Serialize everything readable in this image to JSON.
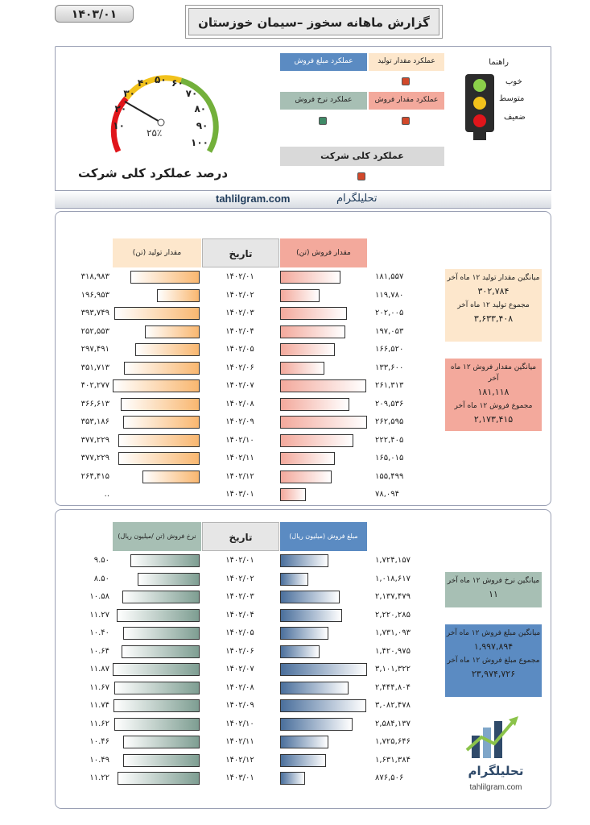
{
  "header": {
    "date": "۱۴۰۳/۰۱",
    "title": "گزارش ماهانه سخوز –سیمان خوزستان"
  },
  "gauge": {
    "percent": 0.25,
    "value_label": "۲۵٪",
    "scale_labels": [
      "۱۰",
      "۲۰",
      "۳۰",
      "۴۰",
      "۵۰",
      "۶۰",
      "۷۰",
      "۸۰",
      "۹۰",
      "۱۰۰"
    ],
    "caption": "درصد عملکرد کلی شرکت"
  },
  "perf_panel": {
    "cells": [
      {
        "label": "عملکرد مقدار تولید",
        "color": "#fde7cc",
        "lamp": "#d2482a"
      },
      {
        "label": "عملکرد مبلغ فروش",
        "color": "#5b8bc2",
        "lamp": "#d2482a"
      },
      {
        "label": "عملکرد مقدار فروش",
        "color": "#f3a99c",
        "lamp": "#d2482a"
      },
      {
        "label": "عملکرد  نرخ فروش",
        "color": "#a7bfb4",
        "lamp": "#3f8a67"
      }
    ],
    "overall": {
      "label": "عملکرد کلی شرکت",
      "lamp": "#d2482a"
    }
  },
  "legend": {
    "title": "راهنما",
    "items": [
      "خوب",
      "متوسط",
      "ضعیف"
    ]
  },
  "brand_bar": {
    "site": "tahlilgram.com",
    "name": "تحلیلگرام"
  },
  "section1": {
    "headers": {
      "left": "مقدار تولید (تن)",
      "center": "تاریخ",
      "right": "مقدار فروش (تن)"
    },
    "rows": [
      {
        "left": "۳۱۸,۹۸۳",
        "lv": 318983,
        "date": "۱۴۰۲/۰۱",
        "right": "۱۸۱,۵۵۷",
        "rv": 181557
      },
      {
        "left": "۱۹۶,۹۵۳",
        "lv": 196953,
        "date": "۱۴۰۲/۰۲",
        "right": "۱۱۹,۷۸۰",
        "rv": 119780
      },
      {
        "left": "۳۹۳,۷۴۹",
        "lv": 393749,
        "date": "۱۴۰۲/۰۳",
        "right": "۲۰۲,۰۰۵",
        "rv": 202005
      },
      {
        "left": "۲۵۲,۵۵۳",
        "lv": 252553,
        "date": "۱۴۰۲/۰۴",
        "right": "۱۹۷,۰۵۳",
        "rv": 197053
      },
      {
        "left": "۲۹۷,۴۹۱",
        "lv": 297491,
        "date": "۱۴۰۲/۰۵",
        "right": "۱۶۶,۵۲۰",
        "rv": 166520
      },
      {
        "left": "۳۵۱,۷۱۳",
        "lv": 351713,
        "date": "۱۴۰۲/۰۶",
        "right": "۱۳۳,۶۰۰",
        "rv": 133600
      },
      {
        "left": "۴۰۲,۲۷۷",
        "lv": 402277,
        "date": "۱۴۰۲/۰۷",
        "right": "۲۶۱,۳۱۳",
        "rv": 261313
      },
      {
        "left": "۳۶۶,۶۱۳",
        "lv": 366613,
        "date": "۱۴۰۲/۰۸",
        "right": "۲۰۹,۵۳۶",
        "rv": 209536
      },
      {
        "left": "۳۵۳,۱۸۶",
        "lv": 353186,
        "date": "۱۴۰۲/۰۹",
        "right": "۲۶۲,۵۹۵",
        "rv": 262595
      },
      {
        "left": "۳۷۷,۲۲۹",
        "lv": 377229,
        "date": "۱۴۰۲/۱۰",
        "right": "۲۲۲,۴۰۵",
        "rv": 222405
      },
      {
        "left": "۳۷۷,۲۲۹",
        "lv": 377229,
        "date": "۱۴۰۲/۱۱",
        "right": "۱۶۵,۰۱۵",
        "rv": 165015
      },
      {
        "left": "۲۶۴,۴۱۵",
        "lv": 264415,
        "date": "۱۴۰۲/۱۲",
        "right": "۱۵۵,۴۹۹",
        "rv": 155499
      },
      {
        "left": "..",
        "lv": 0,
        "date": "۱۴۰۳/۰۱",
        "right": "۷۸,۰۹۴",
        "rv": 78094
      }
    ],
    "stats_production": {
      "avg_label": "میانگین مقدار تولید ۱۲ ماه آخر",
      "avg_value": "۳۰۲,۷۸۴",
      "sum_label": "مجموع تولید ۱۲ ماه آخر",
      "sum_value": "۳,۶۳۳,۴۰۸"
    },
    "stats_sales": {
      "avg_label": "میانگین مقدار فروش ۱۲ ماه آخر",
      "avg_value": "۱۸۱,۱۱۸",
      "sum_label": "مجموع فروش ۱۲ ماه آخر",
      "sum_value": "۲,۱۷۳,۴۱۵"
    }
  },
  "section2": {
    "headers": {
      "left": "نرخ فروش (تن /میلیون ریال)",
      "center": "تاریخ",
      "right": "مبلغ فروش (میلیون ریال)"
    },
    "rows": [
      {
        "left": "۹.۵۰",
        "lv": 9.5,
        "date": "۱۴۰۲/۰۱",
        "right": "۱,۷۲۴,۱۵۷",
        "rv": 1724157
      },
      {
        "left": "۸.۵۰",
        "lv": 8.5,
        "date": "۱۴۰۲/۰۲",
        "right": "۱,۰۱۸,۶۱۷",
        "rv": 1018617
      },
      {
        "left": "۱۰.۵۸",
        "lv": 10.58,
        "date": "۱۴۰۲/۰۳",
        "right": "۲,۱۳۷,۴۷۹",
        "rv": 2137479
      },
      {
        "left": "۱۱.۲۷",
        "lv": 11.27,
        "date": "۱۴۰۲/۰۴",
        "right": "۲,۲۲۰,۲۸۵",
        "rv": 2220285
      },
      {
        "left": "۱۰.۴۰",
        "lv": 10.4,
        "date": "۱۴۰۲/۰۵",
        "right": "۱,۷۳۱,۰۹۳",
        "rv": 1731093
      },
      {
        "left": "۱۰.۶۴",
        "lv": 10.64,
        "date": "۱۴۰۲/۰۶",
        "right": "۱,۴۲۰,۹۷۵",
        "rv": 1420975
      },
      {
        "left": "۱۱.۸۷",
        "lv": 11.87,
        "date": "۱۴۰۲/۰۷",
        "right": "۳,۱۰۱,۳۲۲",
        "rv": 3101322
      },
      {
        "left": "۱۱.۶۷",
        "lv": 11.67,
        "date": "۱۴۰۲/۰۸",
        "right": "۲,۴۴۴,۸۰۴",
        "rv": 2444804
      },
      {
        "left": "۱۱.۷۴",
        "lv": 11.74,
        "date": "۱۴۰۲/۰۹",
        "right": "۳,۰۸۲,۴۷۸",
        "rv": 3082478
      },
      {
        "left": "۱۱.۶۲",
        "lv": 11.62,
        "date": "۱۴۰۲/۱۰",
        "right": "۲,۵۸۴,۱۳۷",
        "rv": 2584137
      },
      {
        "left": "۱۰.۴۶",
        "lv": 10.46,
        "date": "۱۴۰۲/۱۱",
        "right": "۱,۷۲۵,۶۴۶",
        "rv": 1725646
      },
      {
        "left": "۱۰.۴۹",
        "lv": 10.49,
        "date": "۱۴۰۲/۱۲",
        "right": "۱,۶۳۱,۳۸۴",
        "rv": 1631384
      },
      {
        "left": "۱۱.۲۲",
        "lv": 11.22,
        "date": "۱۴۰۳/۰۱",
        "right": "۸۷۶,۵۰۶",
        "rv": 876506
      }
    ],
    "stats_rate": {
      "avg_label": "میانگین نرخ فروش ۱۲ ماه آخر",
      "avg_value": "۱۱"
    },
    "stats_amount": {
      "avg_label": "میانگین مبلغ فروش ۱۲ ماه آخر",
      "avg_value": "۱,۹۹۷,۸۹۴",
      "sum_label": "مجموع مبلغ فروش ۱۲ ماه آخر",
      "sum_value": "۲۳,۹۷۴,۷۲۶"
    }
  },
  "logo": {
    "name": "تحلیلگرام",
    "site": "tahlilgram.com"
  },
  "colors": {
    "production": "#f9b770",
    "sales_qty": "#f3a99c",
    "rate": "#7e9e92",
    "amount": "#4a6f9c"
  }
}
